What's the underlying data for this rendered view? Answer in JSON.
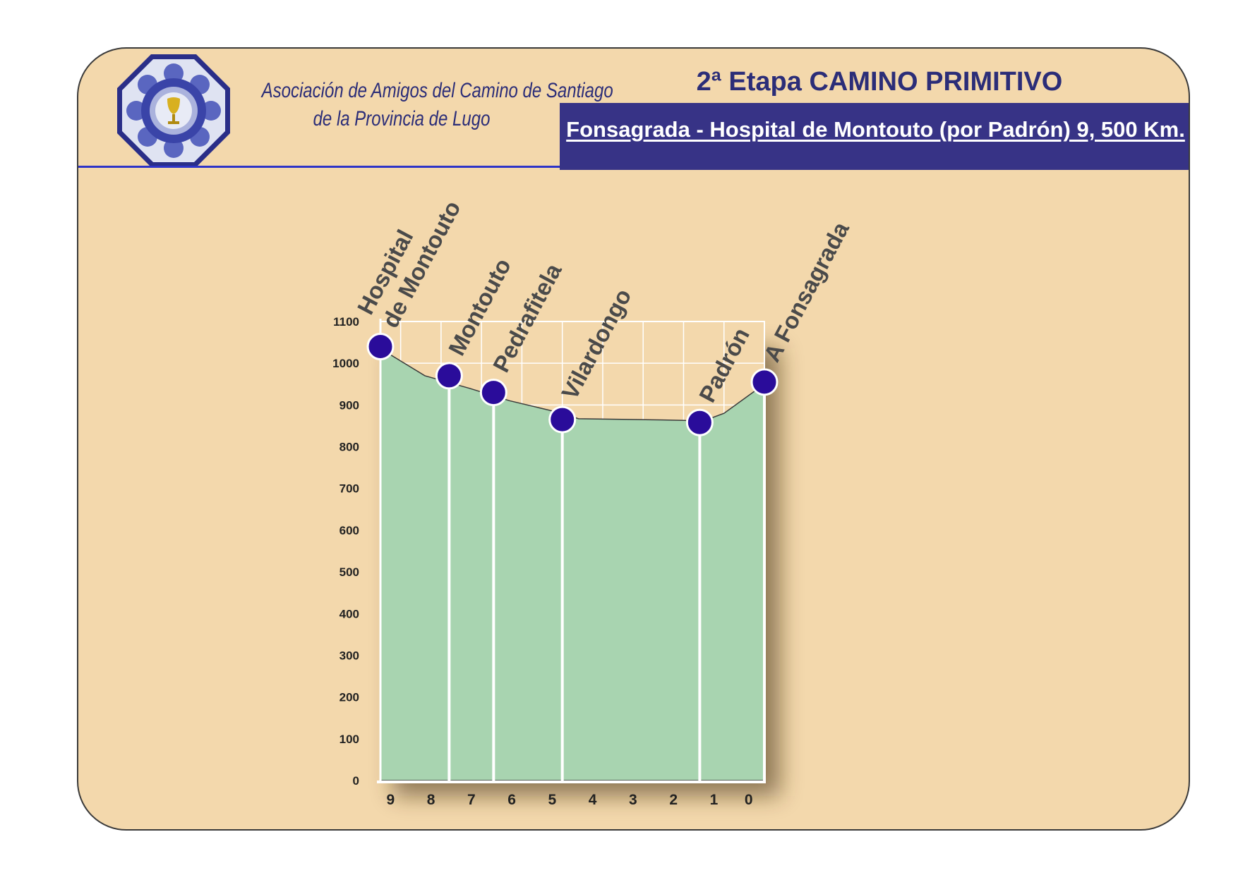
{
  "header": {
    "association_line1": "Asociación de Amigos del Camino de Santiago",
    "association_line2": "de la Provincia de Lugo",
    "stage_title": "2ª Etapa CAMINO PRIMITIVO",
    "route": "Fonsagrada - Hospital de Montouto (por Padrón) 9, 500 Km."
  },
  "colors": {
    "card_background": "#f3d8ac",
    "brand_blue": "#2b2d78",
    "banner": "#373386",
    "profile_fill": "#a8d4b0",
    "marker": "#2a0c9a"
  },
  "chart_data": {
    "type": "area",
    "title": "",
    "xlabel": "",
    "ylabel": "",
    "ylim": [
      0,
      1100
    ],
    "y_ticks": [
      0,
      100,
      200,
      300,
      400,
      500,
      600,
      700,
      800,
      900,
      1000,
      1100
    ],
    "x_ticks": [
      "9",
      "8",
      "7",
      "6",
      "5",
      "4",
      "3",
      "2",
      "1",
      "0"
    ],
    "x_direction": "reversed",
    "xlim": [
      9.5,
      0
    ],
    "grid": true,
    "profile": [
      {
        "km": 9.5,
        "altitude": 1035
      },
      {
        "km": 8.4,
        "altitude": 970
      },
      {
        "km": 7.3,
        "altitude": 940
      },
      {
        "km": 6.3,
        "altitude": 910
      },
      {
        "km": 5.0,
        "altitude": 880
      },
      {
        "km": 4.6,
        "altitude": 867
      },
      {
        "km": 2.5,
        "altitude": 864
      },
      {
        "km": 1.5,
        "altitude": 862
      },
      {
        "km": 1.0,
        "altitude": 880
      },
      {
        "km": 0.0,
        "altitude": 950
      }
    ],
    "waypoints": [
      {
        "name": "Hospital\nde Montouto",
        "km": 9.5,
        "altitude": 1040
      },
      {
        "name": "Montouto",
        "km": 7.8,
        "altitude": 970
      },
      {
        "name": "Pedrafitela",
        "km": 6.7,
        "altitude": 930
      },
      {
        "name": "Vilardongo",
        "km": 5.0,
        "altitude": 865
      },
      {
        "name": "Padrón",
        "km": 1.6,
        "altitude": 858
      },
      {
        "name": "A Fonsagrada",
        "km": 0.0,
        "altitude": 955
      }
    ]
  }
}
